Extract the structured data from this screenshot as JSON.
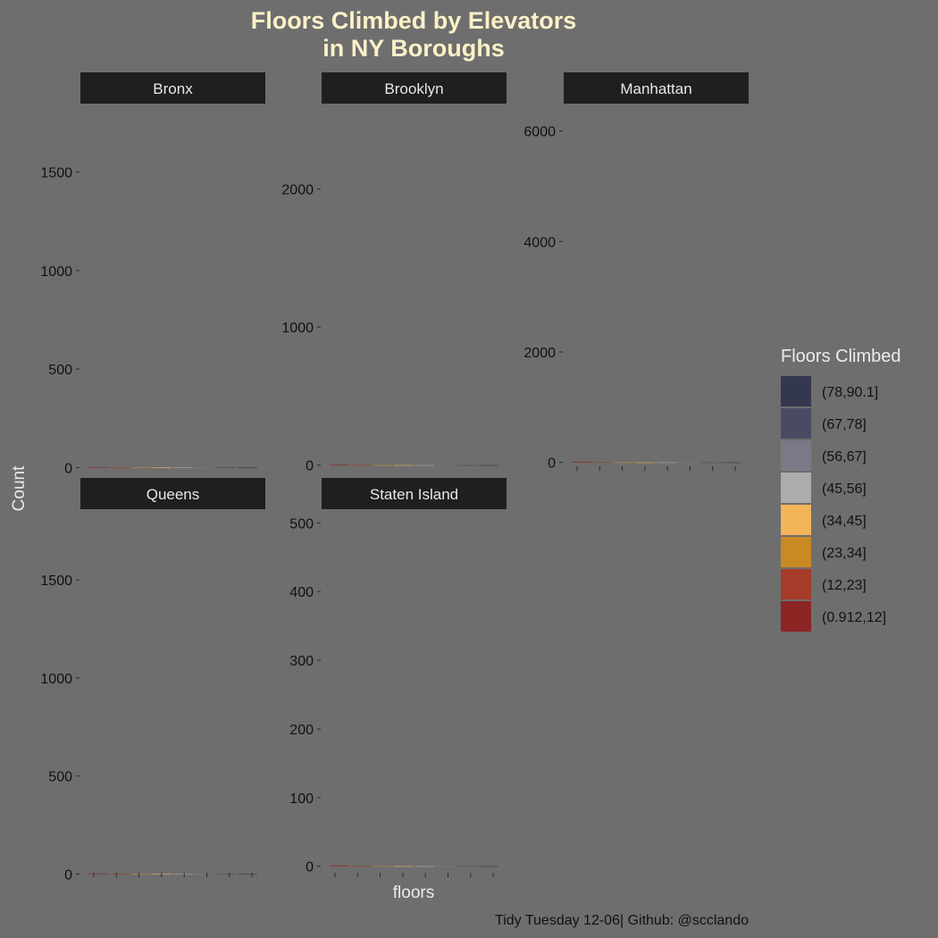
{
  "chart_data": {
    "type": "bar",
    "title_lines": [
      "Floors Climbed by Elevators",
      "in NY Boroughs"
    ],
    "xlabel": "floors",
    "ylabel": "Count",
    "caption": "Tidy Tuesday 12-06| Github: @scclаndo",
    "legend": {
      "title": "Floors Climbed",
      "items": [
        {
          "label": "(78,90.1]",
          "color": "#343750"
        },
        {
          "label": "(67,78]",
          "color": "#4a4b63"
        },
        {
          "label": "(56,67]",
          "color": "#7a7987"
        },
        {
          "label": "(45,56]",
          "color": "#acacaa"
        },
        {
          "label": "(34,45]",
          "color": "#f3b45a"
        },
        {
          "label": "(23,34]",
          "color": "#c98a23"
        },
        {
          "label": "(12,23]",
          "color": "#a63b2a"
        },
        {
          "label": "(0.912,12]",
          "color": "#8b2524"
        }
      ]
    },
    "panels": [
      {
        "name": "Bronx",
        "y_ticks": [
          0,
          500,
          1000,
          1500
        ],
        "ylim": [
          -30,
          1820
        ],
        "values": [
          3,
          0,
          0,
          0,
          0,
          0,
          0,
          0
        ],
        "show_x_ticks": false
      },
      {
        "name": "Brooklyn",
        "y_ticks": [
          0,
          1000,
          2000
        ],
        "ylim": [
          -60,
          2580
        ],
        "values": [
          4,
          0,
          0,
          0,
          0,
          0,
          0,
          0
        ],
        "show_x_ticks": false
      },
      {
        "name": "Manhattan",
        "y_ticks": [
          0,
          2000,
          4000,
          6000
        ],
        "ylim": [
          -200,
          6400
        ],
        "values": [
          12,
          3,
          1,
          0,
          0,
          0,
          0,
          0
        ],
        "show_x_ticks": true
      },
      {
        "name": "Queens",
        "y_ticks": [
          0,
          500,
          1000,
          1500
        ],
        "ylim": [
          -30,
          1860
        ],
        "values": [
          3,
          0,
          0,
          0,
          0,
          0,
          0,
          0
        ],
        "show_x_ticks": true
      },
      {
        "name": "Staten Island",
        "y_ticks": [
          0,
          100,
          200,
          300,
          400,
          500
        ],
        "ylim": [
          -20,
          520
        ],
        "values": [
          1,
          0,
          0,
          0,
          0,
          0,
          0,
          0
        ],
        "show_x_ticks": true
      }
    ]
  }
}
